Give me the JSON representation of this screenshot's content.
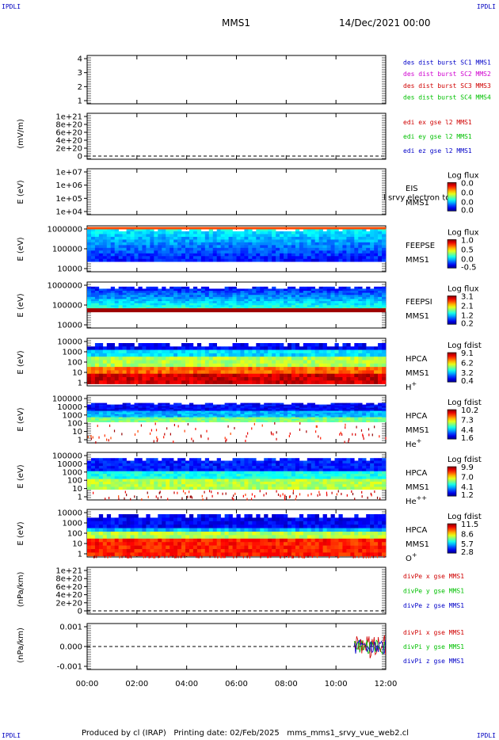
{
  "corner_label": "IPDLI",
  "header": {
    "spacecraft": "MMS1",
    "datetime": "14/Dec/2021 00:00"
  },
  "footer": {
    "produced_by": "Produced by cl (IRAP)",
    "printing_date": "Printing date: 02/Feb/2025",
    "filename": "mms_mms1_srvy_vue_web2.cl"
  },
  "colors": {
    "blue": "#0000c8",
    "magenta": "#d000d0",
    "red": "#d00000",
    "green": "#00c000"
  },
  "chart_data": {
    "type": "heatmap",
    "x_ticks": [
      "00:00",
      "02:00",
      "04:00",
      "06:00",
      "08:00",
      "10:00",
      "12:00"
    ],
    "x_range_hours": [
      0,
      12
    ],
    "panels": [
      {
        "id": "burst",
        "ylabel": "",
        "yticks": [
          "4",
          "3",
          "2",
          "1"
        ],
        "legend": [
          {
            "text": "des dist burst SC1 MMS1",
            "color": "#0000c8"
          },
          {
            "text": "des dist burst SC2 MMS2",
            "color": "#d000d0"
          },
          {
            "text": "des dist burst SC3 MMS3",
            "color": "#d00000"
          },
          {
            "text": "des dist burst SC4 MMS4",
            "color": "#00c000"
          }
        ]
      },
      {
        "id": "edi",
        "ylabel": "(mV/m)",
        "yticks": [
          "1e+21",
          "8e+20",
          "6e+20",
          "4e+20",
          "2e+20",
          "0"
        ],
        "legend": [
          {
            "text": "edi ex gse l2 MMS1",
            "color": "#d00000"
          },
          {
            "text": "edi ey gse l2 MMS1",
            "color": "#00c000"
          },
          {
            "text": "edi ez gse l2 MMS1",
            "color": "#0000c8"
          }
        ]
      },
      {
        "id": "eis",
        "ylabel": "E (eV)",
        "yticks": [
          "1e+07",
          "1e+06",
          "1e+05",
          "1e+04"
        ],
        "names": [
          "EIS",
          "MMS1"
        ],
        "overlay": "l srvy electron to",
        "cbar_title": "Log flux",
        "cbar_ticks": [
          "0.0",
          "0.0",
          "0.0",
          "0.0"
        ]
      },
      {
        "id": "feeps_e",
        "ylabel": "E (eV)",
        "yticks": [
          "1000000",
          "100000",
          "10000"
        ],
        "names": [
          "FEEPSE",
          "MMS1"
        ],
        "cbar_title": "Log flux",
        "cbar_ticks": [
          "1.0",
          "0.5",
          "0.0",
          "-0.5"
        ]
      },
      {
        "id": "feeps_i",
        "ylabel": "E (eV)",
        "yticks": [
          "1000000",
          "100000",
          "10000"
        ],
        "names": [
          "FEEPSI",
          "MMS1"
        ],
        "cbar_title": "Log flux",
        "cbar_ticks": [
          "3.1",
          "2.1",
          "1.2",
          "0.2"
        ]
      },
      {
        "id": "hpca_h",
        "ylabel": "E (eV)",
        "yticks": [
          "10000",
          "1000",
          "100",
          "10",
          "1"
        ],
        "names": [
          "HPCA",
          "MMS1",
          "H"
        ],
        "sup": "+",
        "cbar_title": "Log fdist",
        "cbar_ticks": [
          "9.1",
          "6.2",
          "3.2",
          "0.4"
        ]
      },
      {
        "id": "hpca_he",
        "ylabel": "E (eV)",
        "yticks": [
          "100000",
          "10000",
          "1000",
          "100",
          "10",
          "1"
        ],
        "names": [
          "HPCA",
          "MMS1",
          "He"
        ],
        "sup": "+",
        "cbar_title": "Log fdist",
        "cbar_ticks": [
          "10.2",
          "7.3",
          "4.4",
          "1.6"
        ]
      },
      {
        "id": "hpca_hepp",
        "ylabel": "E (eV)",
        "yticks": [
          "100000",
          "10000",
          "1000",
          "100",
          "10",
          "1"
        ],
        "names": [
          "HPCA",
          "MMS1",
          "He"
        ],
        "sup": "++",
        "cbar_title": "Log fdist",
        "cbar_ticks": [
          "9.9",
          "7.0",
          "4.1",
          "1.2"
        ]
      },
      {
        "id": "hpca_o",
        "ylabel": "E (eV)",
        "yticks": [
          "10000",
          "1000",
          "100",
          "10",
          "1"
        ],
        "names": [
          "HPCA",
          "MMS1",
          "O"
        ],
        "sup": "+",
        "cbar_title": "Log fdist",
        "cbar_ticks": [
          "11.5",
          "8.6",
          "5.7",
          "2.8"
        ]
      },
      {
        "id": "divpe",
        "ylabel": "(nPa/km)",
        "yticks": [
          "1e+21",
          "8e+20",
          "6e+20",
          "4e+20",
          "2e+20",
          "0"
        ],
        "legend": [
          {
            "text": "divPe x gse MMS1",
            "color": "#d00000"
          },
          {
            "text": "divPe y gse MMS1",
            "color": "#00c000"
          },
          {
            "text": "divPe z gse MMS1",
            "color": "#0000c8"
          }
        ]
      },
      {
        "id": "divpi",
        "ylabel": "(nPa/km)",
        "yticks": [
          "0.001",
          "0.000",
          "-0.001"
        ],
        "yrange": [
          -0.0015,
          0.0015
        ],
        "legend": [
          {
            "text": "divPi x gse MMS1",
            "color": "#d00000"
          },
          {
            "text": "divPi y gse MMS1",
            "color": "#00c000"
          },
          {
            "text": "divPi z gse MMS1",
            "color": "#0000c8"
          }
        ],
        "data_start_hour": 10.75
      }
    ]
  }
}
